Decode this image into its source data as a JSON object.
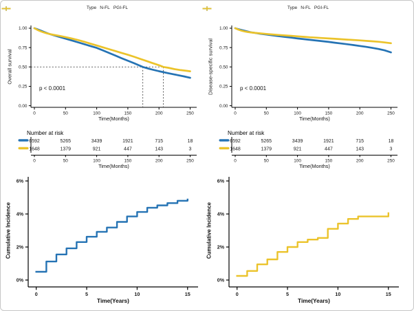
{
  "colors": {
    "n_fl": "#2573B4",
    "pgi_fl": "#EBC32B",
    "axis": "#000000",
    "dashed": "#4a4a4a"
  },
  "legend": {
    "title": "Type",
    "items": [
      {
        "label": "N-FL",
        "color": "#2573B4"
      },
      {
        "label": "PGI-FL",
        "color": "#EBC32B"
      }
    ]
  },
  "chart_data": [
    {
      "type": "line",
      "name": "overall-survival-km",
      "ylabel": "Overall survival",
      "xlabel": "Time(Months)",
      "pvalue": "p < 0.0001",
      "xlim": [
        0,
        250
      ],
      "ylim": [
        0,
        1
      ],
      "xticks": [
        0,
        50,
        100,
        150,
        200,
        250
      ],
      "ytick_labels": [
        "1.00",
        "0.75",
        "0.50",
        "0.25",
        "0.00"
      ],
      "median_survival": {
        "level": 0.5,
        "n_fl_months": 174,
        "pgi_fl_months": 207
      },
      "series": [
        {
          "name": "N-FL",
          "color": "#2573B4",
          "points": [
            [
              0,
              1
            ],
            [
              5,
              0.985
            ],
            [
              10,
              0.97
            ],
            [
              15,
              0.954
            ],
            [
              20,
              0.938
            ],
            [
              25,
              0.924
            ],
            [
              30,
              0.911
            ],
            [
              40,
              0.888
            ],
            [
              50,
              0.865
            ],
            [
              60,
              0.842
            ],
            [
              70,
              0.818
            ],
            [
              80,
              0.794
            ],
            [
              90,
              0.77
            ],
            [
              100,
              0.746
            ],
            [
              110,
              0.713
            ],
            [
              120,
              0.68
            ],
            [
              130,
              0.647
            ],
            [
              140,
              0.613
            ],
            [
              150,
              0.58
            ],
            [
              160,
              0.548
            ],
            [
              170,
              0.513
            ],
            [
              174,
              0.5
            ],
            [
              185,
              0.474
            ],
            [
              200,
              0.445
            ],
            [
              215,
              0.419
            ],
            [
              230,
              0.394
            ],
            [
              240,
              0.378
            ],
            [
              250,
              0.36
            ]
          ]
        },
        {
          "name": "PGI-FL",
          "color": "#EBC32B",
          "points": [
            [
              0,
              1
            ],
            [
              5,
              0.978
            ],
            [
              10,
              0.96
            ],
            [
              15,
              0.946
            ],
            [
              20,
              0.934
            ],
            [
              25,
              0.924
            ],
            [
              30,
              0.916
            ],
            [
              40,
              0.901
            ],
            [
              50,
              0.885
            ],
            [
              60,
              0.867
            ],
            [
              70,
              0.847
            ],
            [
              80,
              0.825
            ],
            [
              90,
              0.801
            ],
            [
              100,
              0.777
            ],
            [
              110,
              0.753
            ],
            [
              120,
              0.729
            ],
            [
              130,
              0.705
            ],
            [
              140,
              0.681
            ],
            [
              150,
              0.657
            ],
            [
              160,
              0.631
            ],
            [
              170,
              0.604
            ],
            [
              180,
              0.576
            ],
            [
              190,
              0.549
            ],
            [
              200,
              0.522
            ],
            [
              207,
              0.5
            ],
            [
              215,
              0.489
            ],
            [
              225,
              0.472
            ],
            [
              235,
              0.459
            ],
            [
              245,
              0.449
            ],
            [
              250,
              0.444
            ]
          ]
        }
      ],
      "risk_table": {
        "title": "Number at risk",
        "rows": [
          {
            "name": "N-FL",
            "color": "#2573B4",
            "values": [
              "6592",
              "5265",
              "3439",
              "1921",
              "715",
              "18"
            ]
          },
          {
            "name": "PGI-FL",
            "color": "#EBC32B",
            "values": [
              "1648",
              "1379",
              "921",
              "447",
              "143",
              "3"
            ]
          }
        ]
      }
    },
    {
      "type": "line",
      "name": "disease-specific-survival-km",
      "ylabel": "Disease-specific survival",
      "xlabel": "Time(Months)",
      "pvalue": "p < 0.0001",
      "xlim": [
        0,
        250
      ],
      "ylim": [
        0,
        1
      ],
      "xticks": [
        0,
        50,
        100,
        150,
        200,
        250
      ],
      "ytick_labels": [
        "1.00",
        "0.75",
        "0.50",
        "0.25",
        "0.00"
      ],
      "series": [
        {
          "name": "N-FL",
          "color": "#2573B4",
          "points": [
            [
              0,
              1
            ],
            [
              5,
              0.988
            ],
            [
              10,
              0.977
            ],
            [
              15,
              0.967
            ],
            [
              20,
              0.957
            ],
            [
              25,
              0.948
            ],
            [
              30,
              0.941
            ],
            [
              40,
              0.929
            ],
            [
              50,
              0.919
            ],
            [
              60,
              0.908
            ],
            [
              70,
              0.898
            ],
            [
              80,
              0.888
            ],
            [
              90,
              0.878
            ],
            [
              100,
              0.868
            ],
            [
              110,
              0.859
            ],
            [
              120,
              0.85
            ],
            [
              130,
              0.841
            ],
            [
              140,
              0.832
            ],
            [
              150,
              0.823
            ],
            [
              160,
              0.813
            ],
            [
              170,
              0.803
            ],
            [
              180,
              0.793
            ],
            [
              190,
              0.782
            ],
            [
              200,
              0.771
            ],
            [
              210,
              0.759
            ],
            [
              220,
              0.746
            ],
            [
              230,
              0.732
            ],
            [
              240,
              0.714
            ],
            [
              250,
              0.688
            ]
          ]
        },
        {
          "name": "PGI-FL",
          "color": "#EBC32B",
          "points": [
            [
              0,
              1
            ],
            [
              5,
              0.982
            ],
            [
              10,
              0.968
            ],
            [
              15,
              0.958
            ],
            [
              20,
              0.951
            ],
            [
              25,
              0.946
            ],
            [
              30,
              0.941
            ],
            [
              40,
              0.933
            ],
            [
              50,
              0.926
            ],
            [
              60,
              0.919
            ],
            [
              70,
              0.913
            ],
            [
              80,
              0.907
            ],
            [
              90,
              0.901
            ],
            [
              100,
              0.895
            ],
            [
              110,
              0.889
            ],
            [
              120,
              0.883
            ],
            [
              130,
              0.878
            ],
            [
              140,
              0.873
            ],
            [
              150,
              0.868
            ],
            [
              160,
              0.863
            ],
            [
              170,
              0.858
            ],
            [
              180,
              0.853
            ],
            [
              190,
              0.848
            ],
            [
              200,
              0.843
            ],
            [
              210,
              0.837
            ],
            [
              220,
              0.831
            ],
            [
              230,
              0.825
            ],
            [
              240,
              0.816
            ],
            [
              250,
              0.806
            ]
          ]
        }
      ],
      "risk_table": {
        "title": "Number at risk",
        "rows": [
          {
            "name": "N-FL",
            "color": "#2573B4",
            "values": [
              "6592",
              "5265",
              "3439",
              "1921",
              "715",
              "18"
            ]
          },
          {
            "name": "PGI-FL",
            "color": "#EBC32B",
            "values": [
              "1648",
              "1379",
              "921",
              "447",
              "143",
              "3"
            ]
          }
        ]
      }
    },
    {
      "type": "step",
      "name": "cumulative-incidence-n-fl",
      "ylabel": "Cumulative Incidence",
      "xlabel": "Time(Years)",
      "xticks": [
        0,
        5,
        10,
        15
      ],
      "ytick_values": [
        0,
        2,
        4,
        6
      ],
      "ytick_labels": [
        "0%",
        "2%",
        "4%",
        "6%"
      ],
      "ylim": [
        0,
        6
      ],
      "series": [
        {
          "name": "N-FL",
          "color": "#2573B4",
          "years": [
            0,
            1,
            2,
            3,
            4,
            5,
            6,
            7,
            8,
            9,
            10,
            11,
            12,
            13,
            14,
            15
          ],
          "values": [
            0.5,
            1.12,
            1.55,
            1.92,
            2.3,
            2.62,
            2.92,
            3.18,
            3.52,
            3.85,
            4.12,
            4.38,
            4.52,
            4.66,
            4.8,
            4.88
          ]
        }
      ]
    },
    {
      "type": "step",
      "name": "cumulative-incidence-pgi-fl",
      "ylabel": "Cumulative Incidence",
      "xlabel": "Time(Years)",
      "xticks": [
        0,
        5,
        10,
        15
      ],
      "ytick_values": [
        0,
        2,
        4,
        6
      ],
      "ytick_labels": [
        "0%",
        "2%",
        "4%",
        "6%"
      ],
      "ylim": [
        0,
        6
      ],
      "series": [
        {
          "name": "PGI-FL",
          "color": "#EBC32B",
          "years": [
            0,
            1,
            2,
            3,
            4,
            5,
            6,
            7,
            8,
            9,
            10,
            11,
            12,
            13,
            14,
            15
          ],
          "values": [
            0.25,
            0.55,
            0.95,
            1.25,
            1.7,
            2.0,
            2.3,
            2.45,
            2.55,
            3.1,
            3.42,
            3.7,
            3.85,
            3.85,
            3.85,
            4.05
          ]
        }
      ]
    }
  ]
}
